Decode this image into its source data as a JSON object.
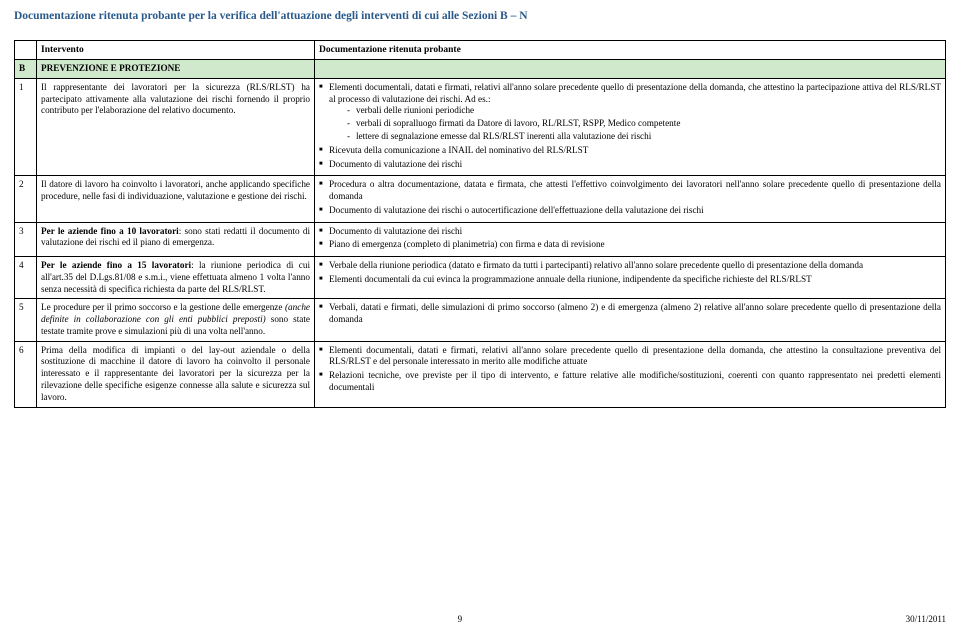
{
  "title": "Documentazione ritenuta probante per la verifica dell'attuazione degli interventi di cui alle Sezioni B – N",
  "headers": {
    "intervento": "Intervento",
    "doc": "Documentazione ritenuta probante"
  },
  "section": {
    "letter": "B",
    "label": "PREVENZIONE E PROTEZIONE"
  },
  "rows": [
    {
      "n": "1",
      "intervento": "Il rappresentante dei lavoratori per la sicurezza (RLS/RLST) ha partecipato attivamente alla valutazione dei rischi fornendo il proprio contributo per l'elaborazione del relativo documento.",
      "doc": [
        {
          "t": "Elementi documentali, datati e firmati, relativi all'anno solare precedente quello di presentazione della domanda, che attestino la partecipazione attiva del RLS/RLST al processo di valutazione dei rischi. Ad es.:",
          "sub": [
            "verbali delle riunioni periodiche",
            "verbali di sopralluogo firmati da Datore di lavoro, RL/RLST, RSPP, Medico competente",
            "lettere di segnalazione emesse dal RLS/RLST inerenti alla valutazione dei rischi"
          ]
        },
        {
          "t": "Ricevuta della comunicazione a INAIL del nominativo del RLS/RLST"
        },
        {
          "t": "Documento di valutazione dei rischi"
        }
      ]
    },
    {
      "n": "2",
      "intervento": "Il datore di lavoro ha coinvolto i lavoratori, anche applicando specifiche procedure, nelle fasi di individuazione, valutazione e gestione dei rischi.",
      "doc": [
        {
          "t": "Procedura o altra documentazione, datata e firmata, che attesti l'effettivo coinvolgimento dei lavoratori nell'anno solare precedente quello di presentazione della domanda"
        },
        {
          "t": "Documento di valutazione dei rischi o autocertificazione dell'effettuazione della valutazione dei rischi"
        }
      ]
    },
    {
      "n": "3",
      "intervento_html": "<b>Per le aziende fino a 10 lavoratori</b>: sono stati redatti il documento di valutazione dei rischi ed il piano di emergenza.",
      "doc": [
        {
          "t": "Documento di valutazione dei rischi"
        },
        {
          "t": "Piano di emergenza (completo di planimetria) con firma e data di revisione"
        }
      ]
    },
    {
      "n": "4",
      "intervento_html": "<b>Per le aziende fino a 15 lavoratori</b>: la riunione periodica di cui all'art.35 del D.Lgs.81/08 e s.m.i., viene effettuata almeno 1 volta l'anno senza necessità di specifica richiesta da parte del RLS/RLST.",
      "doc": [
        {
          "t": "Verbale della riunione periodica (datato e firmato da tutti i partecipanti) relativo all'anno solare precedente quello di presentazione della domanda"
        },
        {
          "t": "Elementi documentali da cui evinca la programmazione annuale della riunione, indipendente da specifiche richieste del RLS/RLST"
        }
      ]
    },
    {
      "n": "5",
      "intervento_html": "Le procedure per il primo soccorso e la gestione delle emergenze <i>(anche definite in collaborazione con gli enti pubblici preposti)</i> sono state testate tramite prove e simulazioni più di una volta nell'anno.",
      "doc": [
        {
          "t": "Verbali, datati e firmati, delle simulazioni di primo soccorso (almeno 2) e di emergenza (almeno 2) relative all'anno solare precedente quello di presentazione della domanda"
        }
      ]
    },
    {
      "n": "6",
      "intervento": "Prima della modifica di impianti o del lay-out aziendale o della sostituzione di macchine il datore di lavoro ha coinvolto il personale interessato e il rappresentante dei lavoratori per la sicurezza per la rilevazione delle specifiche esigenze connesse alla salute e sicurezza sul lavoro.",
      "doc": [
        {
          "t": "Elementi documentali, datati e firmati, relativi  all'anno solare precedente quello di presentazione della domanda, che attestino la consultazione preventiva del RLS/RLST e del personale interessato in merito alle modifiche attuate"
        },
        {
          "t": "Relazioni tecniche, ove previste per il tipo di intervento, e fatture relative alle modifiche/sostituzioni, coerenti con quanto rappresentato nei predetti elementi documentali"
        }
      ]
    }
  ],
  "footer": {
    "page": "9",
    "date": "30/11/2011"
  }
}
